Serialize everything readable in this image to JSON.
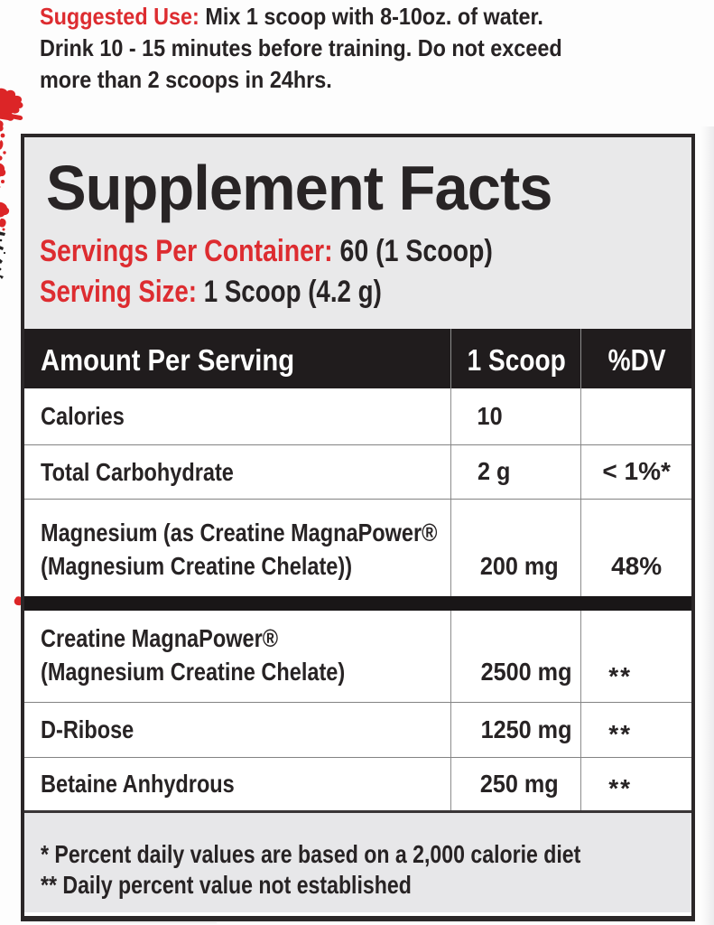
{
  "colors": {
    "red": "#dd2c30",
    "ink": "#272324",
    "header_band": "#201c1d",
    "panel_gray": "#e9e9ea",
    "border": "#2b2728"
  },
  "suggested_use": {
    "label": "Suggested Use:",
    "line1_rest": " Mix 1 scoop with 8-10oz. of water.",
    "line2": "Drink 10 - 15 minutes before training. Do not exceed",
    "line3": "more than 2 scoops in 24hrs."
  },
  "panel": {
    "title": "Supplement Facts",
    "servings_label": "Servings Per Container:",
    "servings_value": " 60 (1 Scoop)",
    "serving_size_label": "Serving Size:",
    "serving_size_value": " 1 Scoop (4.2 g)"
  },
  "table": {
    "columns": [
      "Amount Per Serving",
      "1 Scoop",
      "%DV"
    ],
    "rows": [
      {
        "name_lines": [
          "Calories"
        ],
        "amount": "10",
        "dv": ""
      },
      {
        "name_lines": [
          "Total Carbohydrate"
        ],
        "amount": "2 g",
        "dv": "< 1%*"
      },
      {
        "name_lines": [
          "Magnesium (as Creatine MagnaPower®",
          "(Magnesium Creatine Chelate))"
        ],
        "amount": "200 mg",
        "dv": "48%"
      },
      {
        "name_lines": [
          "Creatine MagnaPower®",
          "(Magnesium Creatine Chelate)"
        ],
        "amount": "2500 mg",
        "dv": "**",
        "divider_before": true
      },
      {
        "name_lines": [
          "D-Ribose"
        ],
        "amount": "1250 mg",
        "dv": "**"
      },
      {
        "name_lines": [
          "Betaine Anhydrous"
        ],
        "amount": "250 mg",
        "dv": "**"
      }
    ],
    "footnotes": [
      "* Percent daily values are based on a 2,000 calorie diet",
      "** Daily percent value not established"
    ]
  }
}
